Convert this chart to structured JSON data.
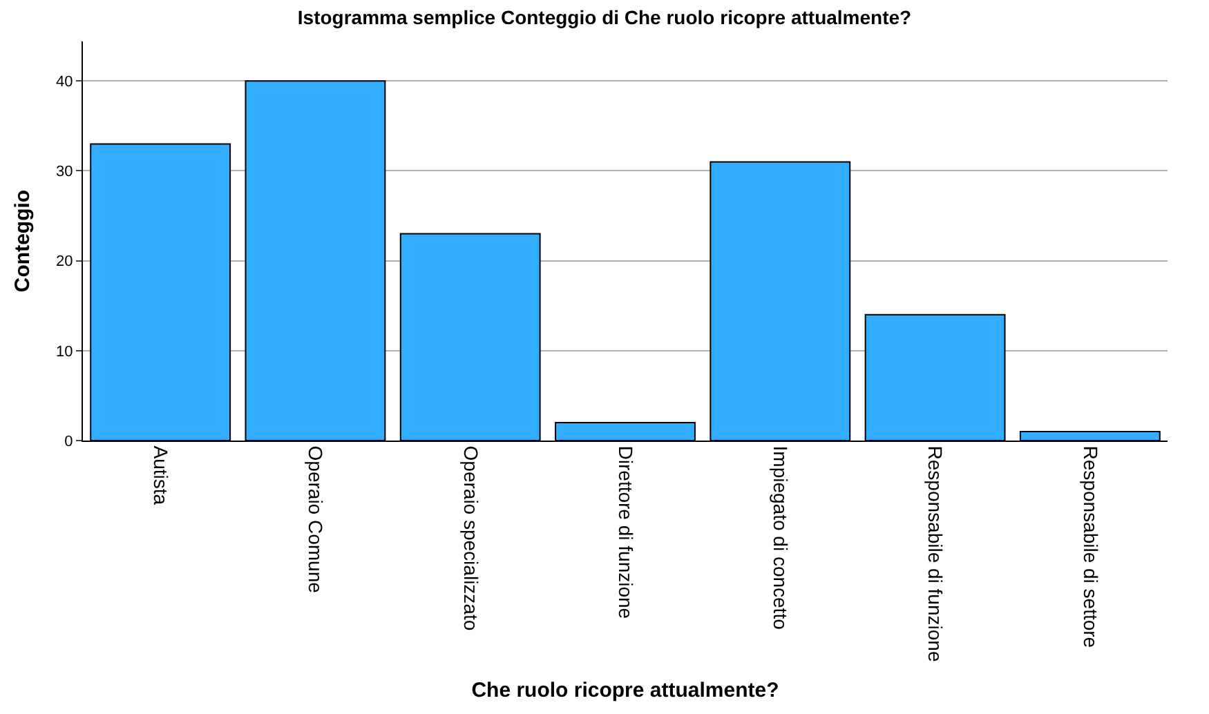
{
  "chart_data": {
    "type": "bar",
    "title": "Istogramma semplice Conteggio di Che ruolo ricopre attualmente?",
    "xlabel": "Che ruolo ricopre attualmente?",
    "ylabel": "Conteggio",
    "categories": [
      "Autista",
      "Operaio Comune",
      "Operaio specializzato",
      "Direttore di funzione",
      "Impiegato di concetto",
      "Responsabile di funzione",
      "Responsabile di settore"
    ],
    "values": [
      33,
      40,
      23,
      2,
      31,
      14,
      1
    ],
    "color": "#33adff",
    "ylim": [
      0,
      44.4
    ],
    "yticks": [
      0,
      10,
      20,
      30,
      40
    ],
    "grid": "y",
    "legend": false
  }
}
